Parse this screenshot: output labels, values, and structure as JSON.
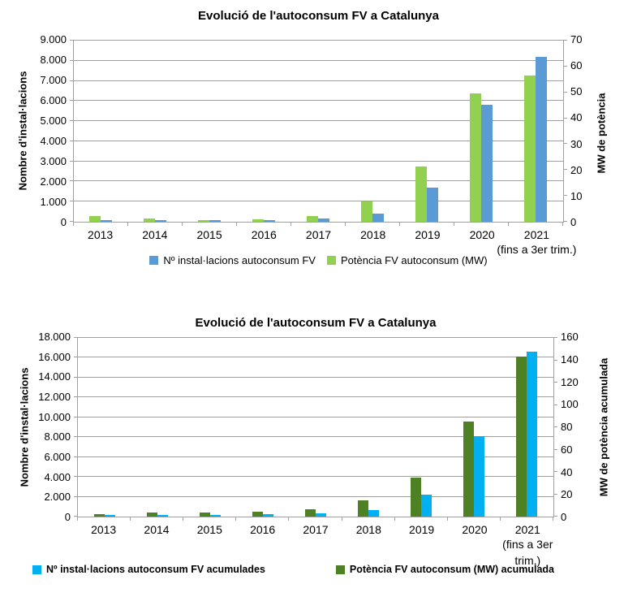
{
  "page": {
    "background": "#FFFFFF",
    "grid_color": "#A0A0A0",
    "text_color": "#000000"
  },
  "chart_data": [
    {
      "type": "bar",
      "title": "Evolució de l'autoconsum FV a Catalunya",
      "categories": [
        "2013",
        "2014",
        "2015",
        "2016",
        "2017",
        "2018",
        "2019",
        "2020",
        "2021"
      ],
      "category_note": "(fins a 3er trim.)",
      "category_note_lines": [
        "(fins a 3er trim.)"
      ],
      "note_category_index": 8,
      "grid": true,
      "legend_position": "bottom",
      "left_axis": {
        "label": "Nombre d'instal·lacions",
        "range": [
          0,
          9000
        ],
        "step": 1000,
        "ticks": [
          "9.000",
          "8.000",
          "7.000",
          "6.000",
          "5.000",
          "4.000",
          "3.000",
          "2.000",
          "1.000",
          "0"
        ]
      },
      "right_axis": {
        "label": "MW de potència",
        "range": [
          0,
          70
        ],
        "step": 10,
        "ticks": [
          "70",
          "60",
          "50",
          "40",
          "30",
          "20",
          "10",
          "0"
        ]
      },
      "series": [
        {
          "name": "Potència FV autoconsum (MW)",
          "axis": "right",
          "color": "#92D050",
          "values": [
            2.1,
            1.4,
            0.6,
            1.0,
            2.3,
            7.8,
            21.5,
            49.5,
            56.5
          ]
        },
        {
          "name": "Nº instal·lacions autoconsum FV",
          "axis": "left",
          "color": "#5B9BD5",
          "values": [
            80,
            60,
            50,
            60,
            180,
            420,
            1700,
            5800,
            8200
          ]
        }
      ],
      "legend": [
        {
          "label": "Nº instal·lacions autoconsum FV",
          "color": "#5B9BD5"
        },
        {
          "label": "Potència FV autoconsum (MW)",
          "color": "#92D050"
        }
      ]
    },
    {
      "type": "bar",
      "title": "Evolució de l'autoconsum FV a Catalunya",
      "categories": [
        "2013",
        "2014",
        "2015",
        "2016",
        "2017",
        "2018",
        "2019",
        "2020",
        "2021"
      ],
      "category_note": "(fins a 3er trim.)",
      "category_note_lines": [
        "(fins a 3er",
        "trim.)"
      ],
      "note_category_index": 8,
      "grid": true,
      "legend_position": "bottom",
      "left_axis": {
        "label": "Nombre d'instal·lacions",
        "range": [
          0,
          18000
        ],
        "step": 2000,
        "ticks": [
          "18.000",
          "16.000",
          "14.000",
          "12.000",
          "10.000",
          "8.000",
          "6.000",
          "4.000",
          "2.000",
          "0"
        ]
      },
      "right_axis": {
        "label": "MW de potència acumulada",
        "range": [
          0,
          160
        ],
        "step": 20,
        "ticks": [
          "160",
          "140",
          "120",
          "100",
          "80",
          "60",
          "40",
          "20",
          "0"
        ]
      },
      "series": [
        {
          "name": "Potència FV autoconsum (MW) acumulada",
          "axis": "right",
          "color": "#4E8123",
          "values": [
            2.5,
            3.3,
            4.0,
            4.7,
            6.4,
            14.5,
            35,
            85,
            143
          ]
        },
        {
          "name": "Nº instal·lacions autoconsum FV acumulades",
          "axis": "left",
          "color": "#00B0F0",
          "values": [
            110,
            160,
            190,
            230,
            320,
            650,
            2250,
            8100,
            16650
          ]
        }
      ],
      "legend": [
        {
          "label": "Nº instal·lacions autoconsum FV acumulades",
          "color": "#00B0F0"
        },
        {
          "label": "Potència FV autoconsum (MW) acumulada",
          "color": "#4E8123"
        }
      ]
    }
  ]
}
